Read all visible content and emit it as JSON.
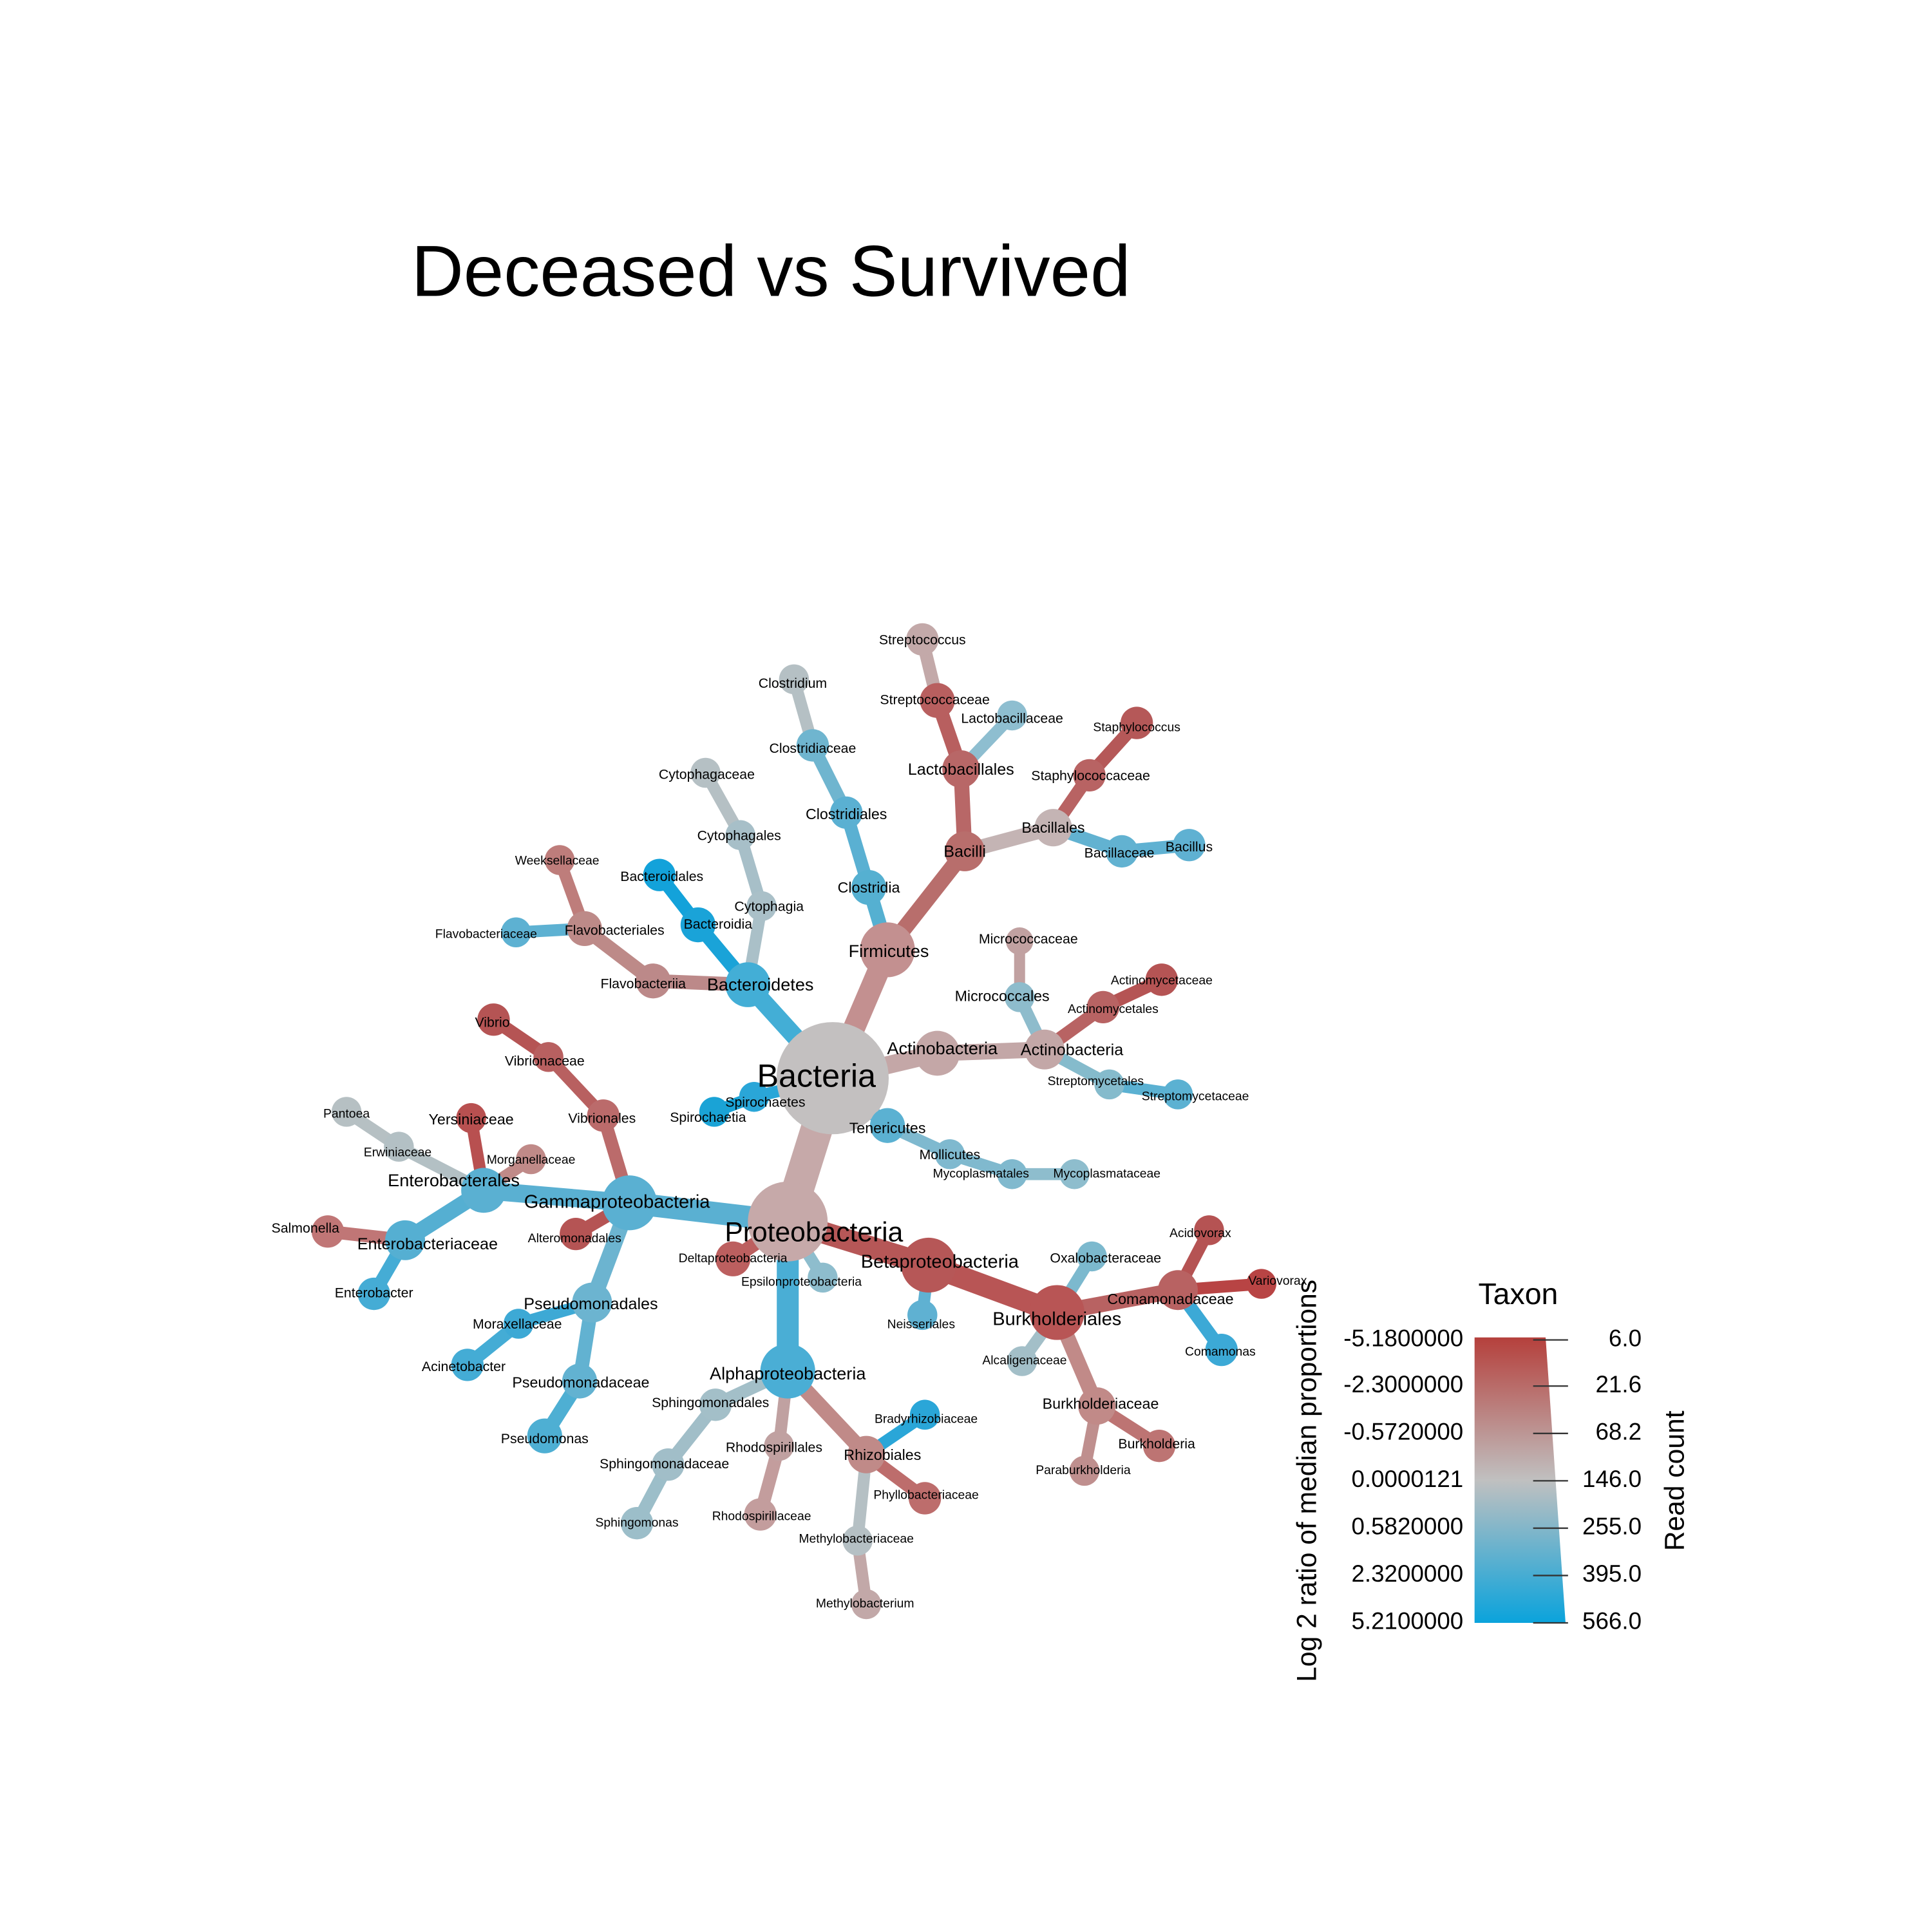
{
  "title": "Deceased vs Survived",
  "nodes": [
    {
      "label": "Bacteria",
      "parent": null,
      "color": "#c3c0c0"
    },
    {
      "label": "Proteobacteria",
      "parent": 0,
      "color": "#c6a9a9"
    },
    {
      "label": "Firmicutes",
      "parent": 0,
      "color": "#c39090"
    },
    {
      "label": "Bacteroidetes",
      "parent": 0,
      "color": "#43aed6"
    },
    {
      "label": "Actinobacteria",
      "parent": 0,
      "color": "#c4a7a7"
    },
    {
      "label": "Tenericutes",
      "parent": 0,
      "color": "#5bb1d2"
    },
    {
      "label": "Spirochaetes",
      "parent": 0,
      "color": "#2aa6d8"
    },
    {
      "label": "Spirochaetia",
      "parent": 6,
      "color": "#1aa3d6"
    },
    {
      "label": "Bacilli",
      "parent": 2,
      "color": "#b86e6c"
    },
    {
      "label": "Clostridia",
      "parent": 2,
      "color": "#55b0d1"
    },
    {
      "label": "Lactobacillales",
      "parent": 8,
      "color": "#b86767"
    },
    {
      "label": "Bacillales",
      "parent": 8,
      "color": "#c4b4b4"
    },
    {
      "label": "Streptococcaceae",
      "parent": 10,
      "color": "#b85f5f"
    },
    {
      "label": "Lactobacillaceae",
      "parent": 10,
      "color": "#8ebed0"
    },
    {
      "label": "Streptococcus",
      "parent": 12,
      "color": "#c3a9a9"
    },
    {
      "label": "Staphylococcaceae",
      "parent": 11,
      "color": "#b86363"
    },
    {
      "label": "Bacillaceae",
      "parent": 11,
      "color": "#62b2d1"
    },
    {
      "label": "Staphylococcus",
      "parent": 15,
      "color": "#b55858"
    },
    {
      "label": "Bacillus",
      "parent": 16,
      "color": "#5fb1d2"
    },
    {
      "label": "Clostridiales",
      "parent": 9,
      "color": "#5ab0d2"
    },
    {
      "label": "Clostridiaceae",
      "parent": 19,
      "color": "#6fb5cf"
    },
    {
      "label": "Clostridium",
      "parent": 20,
      "color": "#b5c0c4"
    },
    {
      "label": "Bacteroidia",
      "parent": 3,
      "color": "#1aa3d8"
    },
    {
      "label": "Bacteroidales",
      "parent": 22,
      "color": "#13a2da"
    },
    {
      "label": "Cytophagia",
      "parent": 3,
      "color": "#aac0c8"
    },
    {
      "label": "Cytophagales",
      "parent": 24,
      "color": "#a7bfc8"
    },
    {
      "label": "Cytophagaceae",
      "parent": 25,
      "color": "#b5c0c4"
    },
    {
      "label": "Flavobacteriia",
      "parent": 3,
      "color": "#bc8989"
    },
    {
      "label": "Flavobacteriales",
      "parent": 27,
      "color": "#bd8a88"
    },
    {
      "label": "Weeksellaceae",
      "parent": 28,
      "color": "#be7d7b"
    },
    {
      "label": "Flavobacteriaceae",
      "parent": 28,
      "color": "#5db1d2"
    },
    {
      "label": "Actinobacteria",
      "parent": 4,
      "color": "#c3a7a7"
    },
    {
      "label": "Micrococcales",
      "parent": 31,
      "color": "#8ebccc"
    },
    {
      "label": "Micrococcaceae",
      "parent": 32,
      "color": "#c1a1a1"
    },
    {
      "label": "Actinomycetales",
      "parent": 31,
      "color": "#b86363"
    },
    {
      "label": "Actinomycetaceae",
      "parent": 34,
      "color": "#b55454"
    },
    {
      "label": "Streptomycetales",
      "parent": 31,
      "color": "#85bbcc"
    },
    {
      "label": "Streptomycetaceae",
      "parent": 36,
      "color": "#5bb1d2"
    },
    {
      "label": "Mollicutes",
      "parent": 5,
      "color": "#7fb9cf"
    },
    {
      "label": "Mycoplasmatales",
      "parent": 38,
      "color": "#80b9ce"
    },
    {
      "label": "Mycoplasmataceae",
      "parent": 39,
      "color": "#8ebdcd"
    },
    {
      "label": "Gammaproteobacteria",
      "parent": 1,
      "color": "#5ab0d2"
    },
    {
      "label": "Betaproteobacteria",
      "parent": 1,
      "color": "#b65757"
    },
    {
      "label": "Alphaproteobacteria",
      "parent": 1,
      "color": "#4aaed5"
    },
    {
      "label": "Deltaproteobacteria",
      "parent": 1,
      "color": "#bc5f5f"
    },
    {
      "label": "Epsilonproteobacteria",
      "parent": 1,
      "color": "#8ebdcd"
    },
    {
      "label": "Vibrionales",
      "parent": 41,
      "color": "#bb6b6b"
    },
    {
      "label": "Vibrionaceae",
      "parent": 46,
      "color": "#b86060"
    },
    {
      "label": "Vibrio",
      "parent": 47,
      "color": "#b55454"
    },
    {
      "label": "Alteromonadales",
      "parent": 41,
      "color": "#b55454"
    },
    {
      "label": "Enterobacterales",
      "parent": 41,
      "color": "#5ab0d2"
    },
    {
      "label": "Yersiniaceae",
      "parent": 50,
      "color": "#b85050"
    },
    {
      "label": "Morganellaceae",
      "parent": 50,
      "color": "#c08a88"
    },
    {
      "label": "Erwiniaceae",
      "parent": 50,
      "color": "#b3c0c4"
    },
    {
      "label": "Pantoea",
      "parent": 53,
      "color": "#b6c0c3"
    },
    {
      "label": "Enterobacteriaceae",
      "parent": 50,
      "color": "#55afd2"
    },
    {
      "label": "Salmonella",
      "parent": 55,
      "color": "#c07676"
    },
    {
      "label": "Enterobacter",
      "parent": 55,
      "color": "#45acd5"
    },
    {
      "label": "Pseudomonadales",
      "parent": 41,
      "color": "#6cb4d0"
    },
    {
      "label": "Moraxellaceae",
      "parent": 58,
      "color": "#3da9d5"
    },
    {
      "label": "Acinetobacter",
      "parent": 59,
      "color": "#44acd5"
    },
    {
      "label": "Pseudomonadaceae",
      "parent": 58,
      "color": "#62b2d1"
    },
    {
      "label": "Pseudomonas",
      "parent": 61,
      "color": "#4eafd3"
    },
    {
      "label": "Burkholderiales",
      "parent": 42,
      "color": "#b85555"
    },
    {
      "label": "Neisseriales",
      "parent": 42,
      "color": "#5fb1d2"
    },
    {
      "label": "Comamonadaceae",
      "parent": 63,
      "color": "#b86262"
    },
    {
      "label": "Oxalobacteraceae",
      "parent": 63,
      "color": "#7cb9ce"
    },
    {
      "label": "Alcaligenaceae",
      "parent": 63,
      "color": "#a3bfc8"
    },
    {
      "label": "Burkholderiaceae",
      "parent": 63,
      "color": "#c18a88"
    },
    {
      "label": "Acidovorax",
      "parent": 65,
      "color": "#b55353"
    },
    {
      "label": "Variovorax",
      "parent": 65,
      "color": "#b84444"
    },
    {
      "label": "Comamonas",
      "parent": 65,
      "color": "#3ca9d6"
    },
    {
      "label": "Burkholderia",
      "parent": 68,
      "color": "#bd7473"
    },
    {
      "label": "Paraburkholderia",
      "parent": 68,
      "color": "#bf8f8e"
    },
    {
      "label": "Sphingomonadales",
      "parent": 43,
      "color": "#a3bfc8"
    },
    {
      "label": "Sphingomonadaceae",
      "parent": 74,
      "color": "#a1bec8"
    },
    {
      "label": "Sphingomonas",
      "parent": 75,
      "color": "#9cbec9"
    },
    {
      "label": "Rhodospirillales",
      "parent": 43,
      "color": "#c0a1a1"
    },
    {
      "label": "Rhodospirillaceae",
      "parent": 77,
      "color": "#c39d9d"
    },
    {
      "label": "Rhizobiales",
      "parent": 43,
      "color": "#c08a88"
    },
    {
      "label": "Bradyrhizobiaceae",
      "parent": 79,
      "color": "#2aa6d8"
    },
    {
      "label": "Phyllobacteriaceae",
      "parent": 79,
      "color": "#bd6d6c"
    },
    {
      "label": "Methylobacteriaceae",
      "parent": 79,
      "color": "#b5c0c4"
    },
    {
      "label": "Methylobacterium",
      "parent": 82,
      "color": "#c2a8a8"
    }
  ],
  "legend": {
    "title": "Taxon",
    "color_label": "Log 2 ratio of median proportions",
    "size_label": "Read count",
    "color_ticks": [
      "-5.1800000",
      "-2.3000000",
      "-0.5720000",
      "0.0000121",
      "0.5820000",
      "2.3200000",
      "5.2100000"
    ],
    "size_ticks": [
      "6.0",
      "21.6",
      "68.2",
      "146.0",
      "255.0",
      "395.0",
      "566.0"
    ]
  }
}
